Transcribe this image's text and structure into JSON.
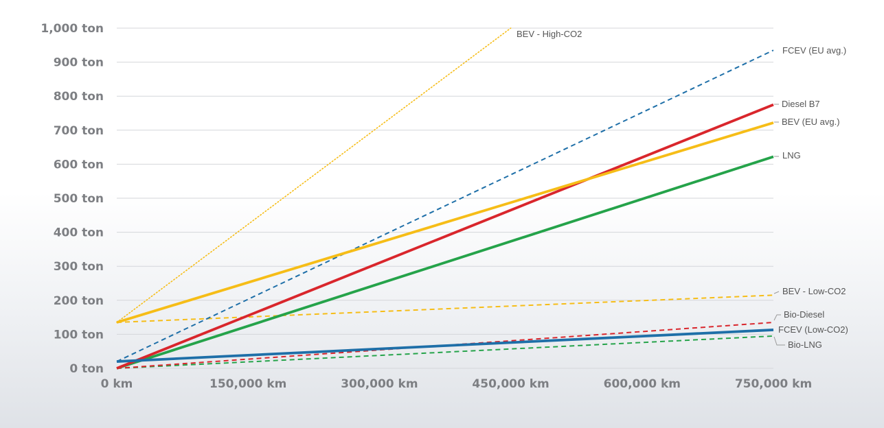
{
  "chart_data": {
    "type": "line",
    "title": "",
    "xlabel": "",
    "ylabel": "",
    "xlim": [
      0,
      750000
    ],
    "ylim": [
      0,
      1000
    ],
    "grid": true,
    "legend": "labels at line ends (right side)",
    "x_ticks": [
      0,
      150000,
      300000,
      450000,
      600000,
      750000
    ],
    "x_tick_labels": [
      "0 km",
      "150,000 km",
      "300,000 km",
      "450,000 km",
      "600,000 km",
      "750,000 km"
    ],
    "y_ticks": [
      0,
      100,
      200,
      300,
      400,
      500,
      600,
      700,
      800,
      900,
      1000
    ],
    "y_tick_labels": [
      "0 ton",
      "100 ton",
      "200 ton",
      "300 ton",
      "400 ton",
      "500 ton",
      "600 ton",
      "700 ton",
      "800 ton",
      "900 ton",
      "1,000 ton"
    ],
    "series": [
      {
        "name": "BEV - High-CO2",
        "color": "#f6bd17",
        "style": "dotted",
        "x": [
          0,
          450000
        ],
        "y": [
          135,
          1000
        ]
      },
      {
        "name": "FCEV (EU avg.)",
        "color": "#1e6fa8",
        "style": "dashed",
        "x": [
          0,
          750000
        ],
        "y": [
          20,
          935
        ]
      },
      {
        "name": "Diesel B7",
        "color": "#d9262c",
        "style": "solid",
        "x": [
          0,
          750000
        ],
        "y": [
          0,
          775
        ]
      },
      {
        "name": "BEV (EU avg.)",
        "color": "#f6bd17",
        "style": "solid",
        "x": [
          0,
          750000
        ],
        "y": [
          135,
          722
        ]
      },
      {
        "name": "LNG",
        "color": "#25a34a",
        "style": "solid",
        "x": [
          0,
          750000
        ],
        "y": [
          0,
          622
        ]
      },
      {
        "name": "BEV - Low-CO2",
        "color": "#f6bd17",
        "style": "dashed",
        "x": [
          0,
          750000
        ],
        "y": [
          135,
          215
        ]
      },
      {
        "name": "Bio-Diesel",
        "color": "#d9262c",
        "style": "dashed",
        "x": [
          0,
          750000
        ],
        "y": [
          0,
          135
        ]
      },
      {
        "name": "FCEV (Low-CO2)",
        "color": "#1e6fa8",
        "style": "solid",
        "x": [
          0,
          750000
        ],
        "y": [
          20,
          113
        ]
      },
      {
        "name": "Bio-LNG",
        "color": "#25a34a",
        "style": "dashed",
        "x": [
          0,
          750000
        ],
        "y": [
          0,
          95
        ]
      }
    ]
  }
}
